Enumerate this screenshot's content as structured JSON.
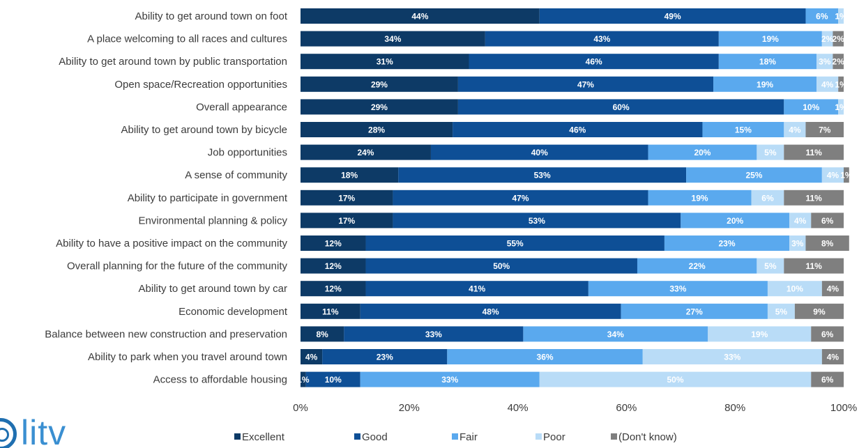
{
  "logo": {
    "text": "litv"
  },
  "chart_data": {
    "type": "bar",
    "orientation": "horizontal",
    "stacked": true,
    "categories": [
      "Ability to get around town on foot",
      "A place welcoming to all races and cultures",
      "Ability to get around town by public transportation",
      "Open space/Recreation opportunities",
      "Overall appearance",
      "Ability to get around town by bicycle",
      "Job opportunities",
      "A sense of community",
      "Ability to participate in government",
      "Environmental planning & policy",
      "Ability to have a positive impact on the community",
      "Overall planning for the future of the community",
      "Ability to get around town by car",
      "Economic development",
      "Balance between new construction and preservation",
      "Ability to park when you travel around town",
      "Access to affordable housing"
    ],
    "series": [
      {
        "name": "Excellent",
        "color": "#0d3a66",
        "label_color": "#ffffff",
        "values": [
          44,
          34,
          31,
          29,
          29,
          28,
          24,
          18,
          17,
          17,
          12,
          12,
          12,
          11,
          8,
          4,
          1
        ]
      },
      {
        "name": "Good",
        "color": "#0e4f96",
        "label_color": "#ffffff",
        "values": [
          49,
          43,
          46,
          47,
          60,
          46,
          40,
          53,
          47,
          53,
          55,
          50,
          41,
          48,
          33,
          23,
          10
        ]
      },
      {
        "name": "Fair",
        "color": "#5aa9ee",
        "label_color": "#ffffff",
        "values": [
          6,
          19,
          18,
          19,
          10,
          15,
          20,
          25,
          19,
          20,
          23,
          22,
          33,
          27,
          34,
          36,
          33
        ]
      },
      {
        "name": "Poor",
        "color": "#b9dcf7",
        "label_color": "#ffffff",
        "values": [
          1,
          2,
          3,
          4,
          1,
          4,
          5,
          4,
          6,
          4,
          3,
          5,
          10,
          5,
          19,
          33,
          50
        ]
      },
      {
        "name": "(Don't know)",
        "color": "#7f7f7f",
        "label_color": "#ffffff",
        "values": [
          0,
          2,
          2,
          1,
          0,
          7,
          11,
          1,
          11,
          6,
          8,
          11,
          4,
          9,
          6,
          4,
          6
        ]
      }
    ],
    "xlim": [
      0,
      100
    ],
    "xticks": [
      "0%",
      "20%",
      "40%",
      "60%",
      "80%",
      "100%"
    ],
    "value_suffix": "%",
    "grid": false,
    "legend_position": "bottom"
  }
}
